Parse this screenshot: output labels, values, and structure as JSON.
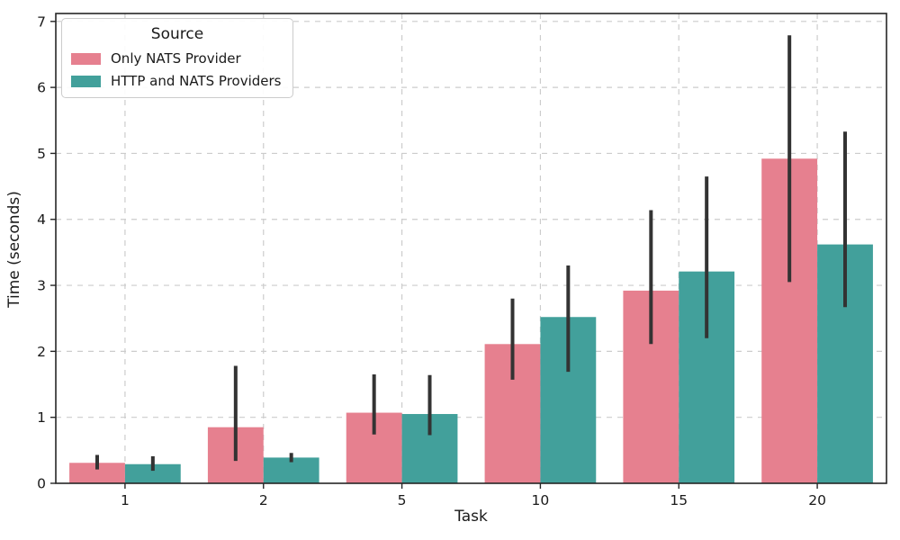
{
  "figure": {
    "background": "#ffffff",
    "text_color": "#1a1a1a",
    "spine_color": "#262626"
  },
  "chart_data": {
    "type": "bar",
    "title": "",
    "xlabel": "Task",
    "ylabel": "Time (seconds)",
    "categories": [
      "1",
      "2",
      "5",
      "10",
      "15",
      "20"
    ],
    "series": [
      {
        "name": "Only NATS Provider",
        "color": "#e6808f",
        "values": [
          0.31,
          0.85,
          1.07,
          2.11,
          2.92,
          4.92
        ],
        "ci_low": [
          0.21,
          0.34,
          0.74,
          1.57,
          2.11,
          3.05
        ],
        "ci_high": [
          0.43,
          1.78,
          1.65,
          2.8,
          4.14,
          6.79
        ]
      },
      {
        "name": "HTTP and NATS Providers",
        "color": "#42a09b",
        "values": [
          0.29,
          0.39,
          1.05,
          2.52,
          3.21,
          3.62
        ],
        "ci_low": [
          0.19,
          0.32,
          0.73,
          1.69,
          2.2,
          2.67
        ],
        "ci_high": [
          0.41,
          0.46,
          1.64,
          3.3,
          4.65,
          5.33
        ]
      }
    ],
    "legend": {
      "title": "Source",
      "position": "upper-left"
    },
    "y_ticks": [
      0,
      1,
      2,
      3,
      4,
      5,
      6,
      7
    ],
    "ylim": [
      0,
      7.12
    ],
    "grid": {
      "show": true,
      "style": "dashed",
      "color": "#cccccc",
      "axes": "both"
    },
    "error_bar_color": "#333333"
  }
}
